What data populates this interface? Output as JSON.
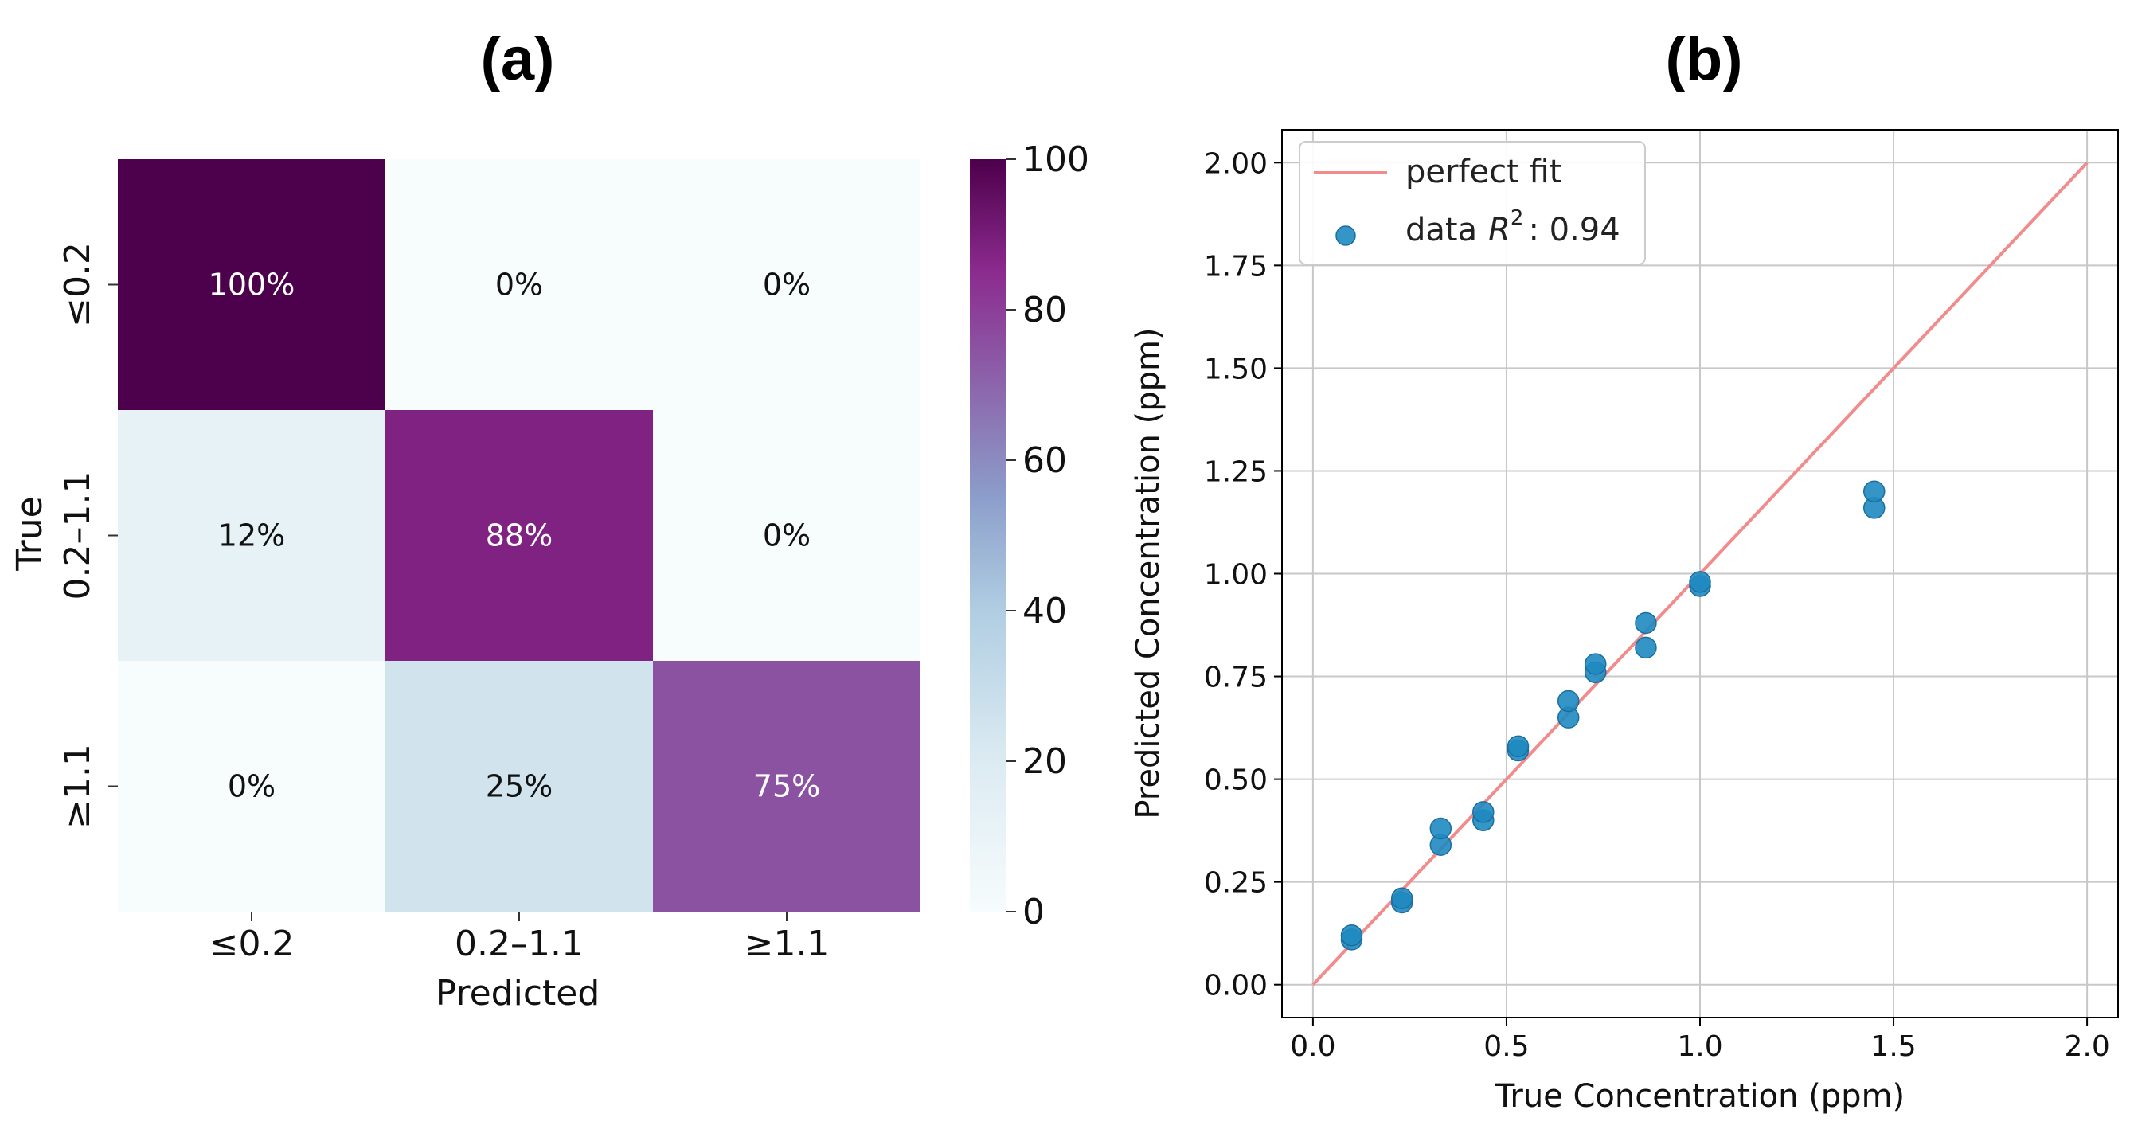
{
  "panel_labels": {
    "a": "a",
    "b": "b"
  },
  "chart_data": [
    {
      "type": "heatmap",
      "panel": "(a)",
      "xlabel": "Predicted",
      "ylabel": "True",
      "x_categories": [
        "≤0.2",
        "0.2–1.1",
        "≥1.1"
      ],
      "y_categories": [
        "≤0.2",
        "0.2–1.1",
        "≥1.1"
      ],
      "values": [
        [
          100,
          0,
          0
        ],
        [
          12,
          88,
          0
        ],
        [
          0,
          25,
          75
        ]
      ],
      "cell_labels": [
        [
          "100%",
          "0%",
          "0%"
        ],
        [
          "12%",
          "88%",
          "0%"
        ],
        [
          "0%",
          "25%",
          "75%"
        ]
      ],
      "colorbar": {
        "min": 0,
        "max": 100,
        "ticks": [
          "0",
          "20",
          "40",
          "60",
          "80",
          "100"
        ],
        "colormap": "BuPu"
      }
    },
    {
      "type": "scatter",
      "panel": "(b)",
      "xlabel": "True Concentration (ppm)",
      "ylabel": "Predicted Concentration (ppm)",
      "xlim": [
        -0.08,
        2.08
      ],
      "ylim": [
        -0.08,
        2.08
      ],
      "x_ticks": [
        "0.0",
        "0.5",
        "1.0",
        "1.5",
        "2.0"
      ],
      "y_ticks": [
        "0.00",
        "0.25",
        "0.50",
        "0.75",
        "1.00",
        "1.25",
        "1.50",
        "1.75",
        "2.00"
      ],
      "grid": true,
      "legend_position": "top-left",
      "series": [
        {
          "name": "perfect fit",
          "kind": "line",
          "color": "#f28b8b",
          "x": [
            0,
            2
          ],
          "y": [
            0,
            2
          ]
        },
        {
          "name": "data",
          "legend_label": "data",
          "r2_label": "R",
          "r2_power": "2",
          "r2_value": ": 0.94",
          "kind": "scatter",
          "color": "#1f8ac0",
          "x": [
            0.1,
            0.1,
            0.23,
            0.23,
            0.33,
            0.33,
            0.44,
            0.44,
            0.53,
            0.53,
            0.66,
            0.66,
            0.73,
            0.73,
            0.86,
            0.86,
            1.0,
            1.0,
            1.45,
            1.45
          ],
          "y": [
            0.11,
            0.12,
            0.2,
            0.21,
            0.34,
            0.38,
            0.4,
            0.42,
            0.57,
            0.58,
            0.65,
            0.69,
            0.76,
            0.78,
            0.82,
            0.88,
            0.97,
            0.98,
            1.16,
            1.2
          ]
        }
      ]
    }
  ]
}
